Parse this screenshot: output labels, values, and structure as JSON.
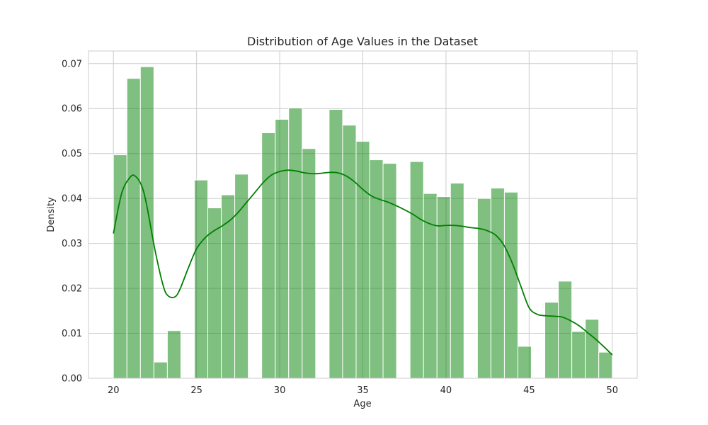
{
  "chart_data": {
    "type": "bar",
    "title": "Distribution of Age Values in the Dataset",
    "xlabel": "Age",
    "ylabel": "Density",
    "xlim": [
      18.5,
      51.5
    ],
    "ylim": [
      0,
      0.0728
    ],
    "xticks": [
      20,
      25,
      30,
      35,
      40,
      45,
      50
    ],
    "yticks": [
      0.0,
      0.01,
      0.02,
      0.03,
      0.04,
      0.05,
      0.06,
      0.07
    ],
    "ytick_labels": [
      "0.00",
      "0.01",
      "0.02",
      "0.03",
      "0.04",
      "0.05",
      "0.06",
      "0.07"
    ],
    "grid": true,
    "colors": {
      "bars": "#008000",
      "kde": "#008000",
      "grid": "#cccccc",
      "spine": "#cccccc"
    },
    "histogram": {
      "bin_start": 20,
      "bin_width": 0.8108,
      "densities": [
        0.0497,
        0.0667,
        0.0693,
        0.0036,
        0.0106,
        0,
        0.0441,
        0.0379,
        0.0408,
        0.0454,
        0,
        0.0546,
        0.0576,
        0.0601,
        0.0511,
        0,
        0.0598,
        0.0563,
        0.0527,
        0.0486,
        0.0478,
        0,
        0.0482,
        0.0411,
        0.0404,
        0.0434,
        0,
        0.04,
        0.0423,
        0.0414,
        0.0071,
        0,
        0.0169,
        0.0216,
        0.0104,
        0.0131,
        0.0058
      ]
    },
    "kde": {
      "x": [
        20,
        20.5,
        21,
        21.3,
        21.7,
        22,
        22.5,
        23,
        23.3,
        23.7,
        24,
        24.5,
        25,
        25.5,
        26,
        26.5,
        27,
        27.5,
        28,
        28.5,
        29,
        29.5,
        30,
        30.5,
        31,
        31.5,
        32,
        32.5,
        33,
        33.5,
        34,
        34.5,
        35,
        35.5,
        36,
        36.5,
        37,
        37.5,
        38,
        38.5,
        39,
        39.5,
        40,
        40.5,
        41,
        41.5,
        42,
        42.5,
        43,
        43.5,
        44,
        44.5,
        45,
        45.5,
        46,
        46.5,
        47,
        47.5,
        48,
        48.5,
        49,
        49.5,
        50
      ],
      "y": [
        0.0322,
        0.0412,
        0.0447,
        0.045,
        0.0428,
        0.0385,
        0.0285,
        0.0205,
        0.0183,
        0.0181,
        0.0198,
        0.0245,
        0.0288,
        0.0312,
        0.0327,
        0.0338,
        0.0351,
        0.0369,
        0.0391,
        0.0413,
        0.0435,
        0.0452,
        0.046,
        0.0463,
        0.0461,
        0.0457,
        0.0455,
        0.0456,
        0.0458,
        0.0457,
        0.045,
        0.0437,
        0.042,
        0.0406,
        0.0398,
        0.0392,
        0.0384,
        0.0375,
        0.0365,
        0.0353,
        0.0344,
        0.0339,
        0.034,
        0.034,
        0.0338,
        0.0335,
        0.0333,
        0.0328,
        0.0318,
        0.0295,
        0.0255,
        0.0205,
        0.0157,
        0.0142,
        0.0139,
        0.0138,
        0.0136,
        0.0128,
        0.0117,
        0.0102,
        0.0087,
        0.007,
        0.0052
      ]
    }
  }
}
